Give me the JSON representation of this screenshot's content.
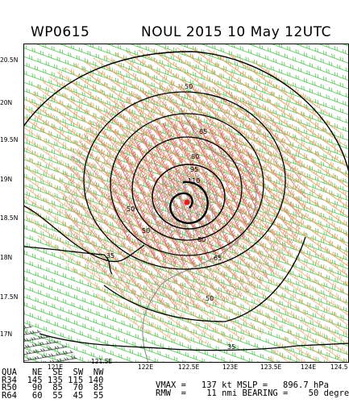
{
  "header": {
    "storm_id": "WP0615",
    "storm_info": "NOUL 2015 10 May 12UTC"
  },
  "axes": {
    "lat_ticks": [
      "20.5N",
      "20N",
      "19.5N",
      "19N",
      "18.5N",
      "18N",
      "17.5N",
      "17N"
    ],
    "lon_ticks_lower": [
      "121E",
      "122E",
      "122.5E",
      "123E",
      "123.5E",
      "124E",
      "124.5"
    ],
    "lon_ticks_upper": [
      "121.5E"
    ]
  },
  "contours": {
    "labels": [
      "50",
      "65",
      "80",
      "95",
      "110",
      "50",
      "35",
      "50",
      "80",
      "65",
      "50",
      "35"
    ]
  },
  "radii_table": {
    "header": "QUA   NE  SE  SW  NW",
    "rows": [
      "R34  145 135 115 140",
      "R50   90  85  70  85",
      "R64   60  55  45  55"
    ]
  },
  "stats": {
    "line1": "VMAX =   137 kt MSLP =   896.7 hPa",
    "line2": "RMW  =    11 nmi BEARING =    50 degrees"
  },
  "colors": {
    "wind_35_50": "#e8a96a",
    "wind_50_64": "#d98a6e",
    "wind_64_plus": "#e05a68",
    "wind_below_34": "#3fbf3f",
    "calm": "#999999",
    "center": "#e02020",
    "contour": "#000000"
  }
}
